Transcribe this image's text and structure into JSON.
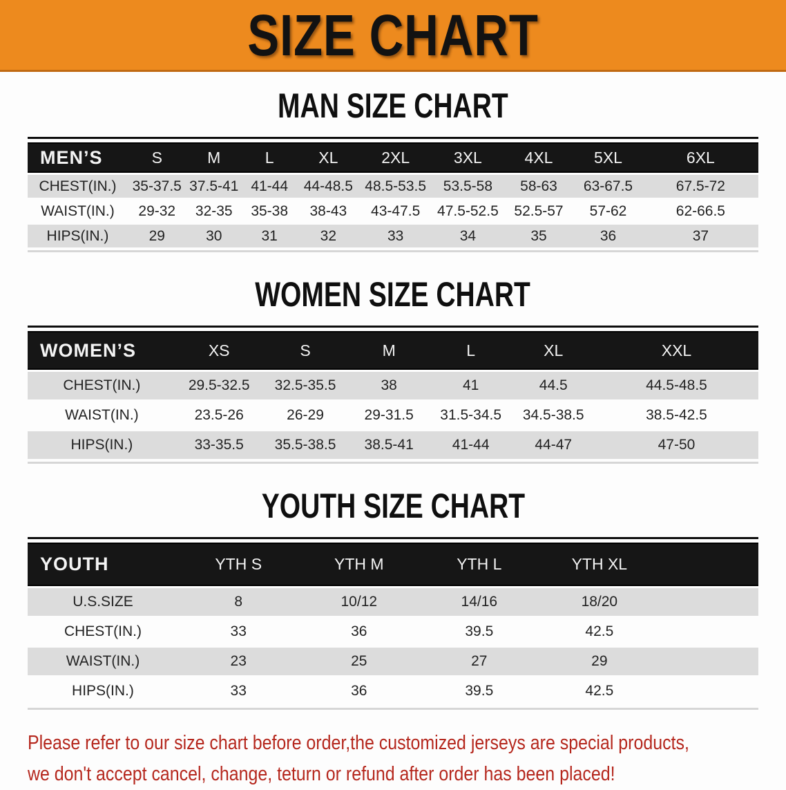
{
  "banner": {
    "title": "SIZE CHART"
  },
  "colors": {
    "banner_orange": "#ED8A1E",
    "banner_edge": "#C06A12",
    "header_bar_black": "#161616",
    "row_stripe_gray": "#DCDCDC",
    "footer_red": "#B5271D"
  },
  "sections": [
    {
      "title": "MAN SIZE CHART",
      "table": {
        "header_label": "MEN’S",
        "sizes": [
          "S",
          "M",
          "L",
          "XL",
          "2XL",
          "3XL",
          "4XL",
          "5XL",
          "6XL"
        ],
        "rows": [
          {
            "label": "CHEST(IN.)",
            "values": [
              "35-37.5",
              "37.5-41",
              "41-44",
              "44-48.5",
              "48.5-53.5",
              "53.5-58",
              "58-63",
              "63-67.5",
              "67.5-72"
            ]
          },
          {
            "label": "WAIST(IN.)",
            "values": [
              "29-32",
              "32-35",
              "35-38",
              "38-43",
              "43-47.5",
              "47.5-52.5",
              "52.5-57",
              "57-62",
              "62-66.5"
            ]
          },
          {
            "label": "HIPS(IN.)",
            "values": [
              "29",
              "30",
              "31",
              "32",
              "33",
              "34",
              "35",
              "36",
              "37"
            ]
          }
        ]
      }
    },
    {
      "title": "WOMEN SIZE CHART",
      "table": {
        "header_label": "WOMEN’S",
        "sizes": [
          "XS",
          "S",
          "M",
          "L",
          "XL",
          "XXL"
        ],
        "rows": [
          {
            "label": "CHEST(IN.)",
            "values": [
              "29.5-32.5",
              "32.5-35.5",
              "38",
              "41",
              "44.5",
              "44.5-48.5"
            ]
          },
          {
            "label": "WAIST(IN.)",
            "values": [
              "23.5-26",
              "26-29",
              "29-31.5",
              "31.5-34.5",
              "34.5-38.5",
              "38.5-42.5"
            ]
          },
          {
            "label": "HIPS(IN.)",
            "values": [
              "33-35.5",
              "35.5-38.5",
              "38.5-41",
              "41-44",
              "44-47",
              "47-50"
            ]
          }
        ]
      }
    },
    {
      "title": "YOUTH SIZE CHART",
      "table": {
        "header_label": "YOUTH",
        "sizes": [
          "YTH S",
          "YTH M",
          "YTH L",
          "YTH XL"
        ],
        "rows": [
          {
            "label": "U.S.SIZE",
            "values": [
              "8",
              "10/12",
              "14/16",
              "18/20"
            ]
          },
          {
            "label": "CHEST(IN.)",
            "values": [
              "33",
              "36",
              "39.5",
              "42.5"
            ]
          },
          {
            "label": "WAIST(IN.)",
            "values": [
              "23",
              "25",
              "27",
              "29"
            ]
          },
          {
            "label": "HIPS(IN.)",
            "values": [
              "33",
              "36",
              "39.5",
              "42.5"
            ]
          }
        ]
      }
    }
  ],
  "footer": {
    "line1": "Please refer to our size chart before order,the customized jerseys are special products,",
    "line2": "we don't accept cancel, change, teturn or refund after order has been placed!"
  }
}
